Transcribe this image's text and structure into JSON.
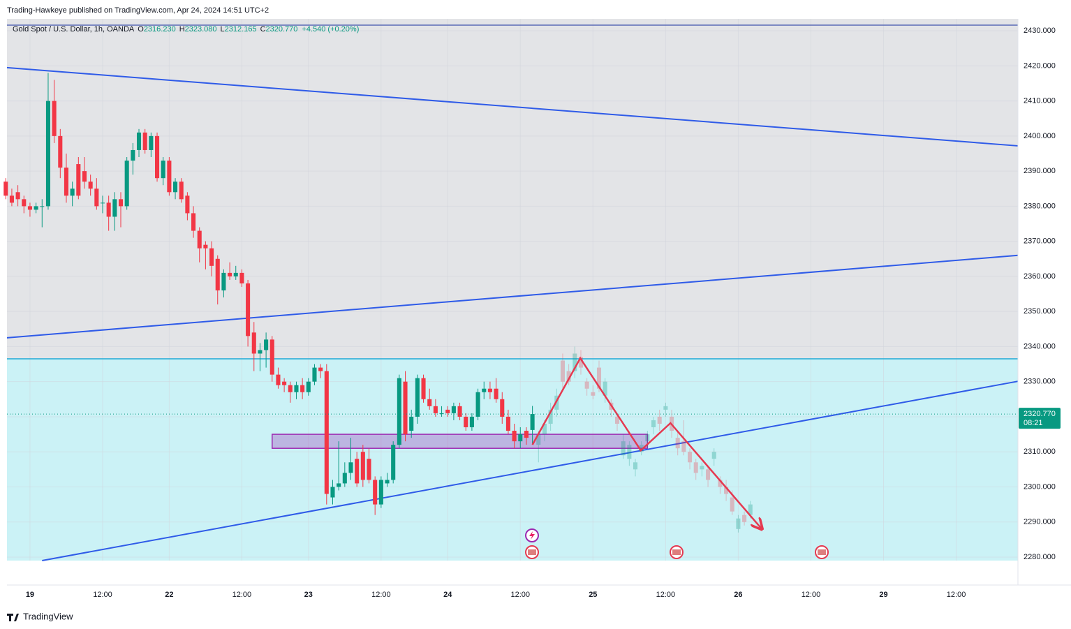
{
  "header": {
    "publisher": "Trading-Hawkeye published on TradingView.com, Apr 24, 2024 14:51 UTC+2",
    "logo": "TradingView"
  },
  "chart_data": {
    "type": "candlestick",
    "legend": {
      "symbol": "Gold Spot / U.S. Dollar, 1h, OANDA",
      "fields": [
        {
          "key": "O",
          "value": "2316.230"
        },
        {
          "key": "H",
          "value": "2323.080"
        },
        {
          "key": "L",
          "value": "2312.165"
        },
        {
          "key": "C",
          "value": "2320.770"
        }
      ],
      "change": "+4.540 (+0.20%)"
    },
    "up_color": "#089981",
    "down_color": "#f23645",
    "x": [
      -4,
      -3,
      -2,
      -1,
      0,
      1,
      2,
      3,
      4,
      5,
      6,
      7,
      8,
      9,
      10,
      11,
      12,
      13,
      14,
      15,
      16,
      17,
      18,
      19,
      20,
      21,
      22,
      23,
      24,
      25,
      26,
      27,
      28,
      29,
      30,
      31,
      32,
      33,
      34,
      35,
      36,
      37,
      38,
      39,
      40,
      41,
      42,
      43,
      44,
      45,
      46,
      47,
      48,
      49,
      50,
      51,
      52,
      53,
      54,
      55,
      56,
      57,
      58,
      59,
      60,
      61,
      62,
      63,
      64,
      65,
      66,
      67,
      68,
      69,
      70,
      71,
      72,
      73,
      74,
      75,
      76,
      77,
      78,
      79,
      80,
      81,
      82,
      83
    ],
    "ohlc": [
      [
        2387,
        2388,
        2382,
        2383
      ],
      [
        2383,
        2385,
        2380,
        2381
      ],
      [
        2384,
        2386,
        2380,
        2382
      ],
      [
        2382,
        2383,
        2378,
        2380
      ],
      [
        2380,
        2381,
        2377,
        2379
      ],
      [
        2379,
        2381,
        2378,
        2380
      ],
      [
        2380,
        2382,
        2374,
        2380
      ],
      [
        2380,
        2418,
        2379,
        2410
      ],
      [
        2410,
        2416,
        2398,
        2400
      ],
      [
        2400,
        2402,
        2388,
        2391
      ],
      [
        2391,
        2395,
        2381,
        2383
      ],
      [
        2383,
        2387,
        2380,
        2385
      ],
      [
        2392,
        2394,
        2382,
        2383
      ],
      [
        2390,
        2394,
        2385,
        2387
      ],
      [
        2387,
        2389,
        2383,
        2385
      ],
      [
        2385,
        2388,
        2379,
        2380
      ],
      [
        2381,
        2383,
        2378,
        2381
      ],
      [
        2381,
        2383,
        2373,
        2377
      ],
      [
        2377,
        2384,
        2373,
        2382
      ],
      [
        2382,
        2384,
        2374,
        2380
      ],
      [
        2380,
        2394,
        2379,
        2393
      ],
      [
        2393,
        2398,
        2389,
        2396
      ],
      [
        2396,
        2402,
        2394,
        2401
      ],
      [
        2401,
        2402,
        2395,
        2396
      ],
      [
        2396,
        2401,
        2394,
        2400
      ],
      [
        2400,
        2401,
        2387,
        2388
      ],
      [
        2388,
        2394,
        2386,
        2393
      ],
      [
        2393,
        2394,
        2383,
        2384
      ],
      [
        2384,
        2388,
        2382,
        2387
      ],
      [
        2387,
        2388,
        2381,
        2382
      ],
      [
        2383,
        2384,
        2376,
        2378
      ],
      [
        2378,
        2380,
        2371,
        2373
      ],
      [
        2373,
        2374,
        2364,
        2368
      ],
      [
        2369,
        2370,
        2362,
        2368
      ],
      [
        2368,
        2370,
        2360,
        2363
      ],
      [
        2365,
        2366,
        2352,
        2356
      ],
      [
        2356,
        2362,
        2354,
        2361
      ],
      [
        2361,
        2364,
        2359,
        2360
      ],
      [
        2360,
        2363,
        2359,
        2361
      ],
      [
        2361,
        2362,
        2357,
        2358
      ],
      [
        2358,
        2359,
        2340,
        2343
      ],
      [
        2344,
        2347,
        2333,
        2338
      ],
      [
        2338,
        2341,
        2333,
        2339
      ],
      [
        2339,
        2344,
        2334,
        2342
      ],
      [
        2342,
        2343,
        2330,
        2332
      ],
      [
        2332,
        2334,
        2328,
        2329
      ],
      [
        2330,
        2331,
        2327,
        2329
      ],
      [
        2329,
        2330,
        2324,
        2327
      ],
      [
        2327,
        2330,
        2325,
        2329
      ],
      [
        2329,
        2331,
        2325,
        2327
      ],
      [
        2327,
        2331,
        2326,
        2330
      ],
      [
        2330,
        2335,
        2329,
        2334
      ],
      [
        2334,
        2335,
        2331,
        2333
      ],
      [
        2333,
        2335,
        2295,
        2298
      ],
      [
        2297,
        2302,
        2295,
        2300
      ],
      [
        2300,
        2313,
        2299,
        2301
      ],
      [
        2301,
        2307,
        2300,
        2304
      ],
      [
        2304,
        2314,
        2302,
        2307
      ],
      [
        2308,
        2310,
        2300,
        2301
      ],
      [
        2310,
        2312,
        2300,
        2302
      ],
      [
        2308,
        2311,
        2301,
        2302
      ],
      [
        2302,
        2303,
        2292,
        2295
      ],
      [
        2295,
        2303,
        2294,
        2302
      ],
      [
        2301,
        2304,
        2300,
        2302
      ],
      [
        2302,
        2313,
        2301,
        2312
      ],
      [
        2312,
        2332,
        2311,
        2331
      ],
      [
        2330,
        2333,
        2313,
        2315
      ],
      [
        2316,
        2322,
        2314,
        2320
      ],
      [
        2320,
        2332,
        2318,
        2331
      ],
      [
        2331,
        2332,
        2324,
        2325
      ],
      [
        2325,
        2328,
        2322,
        2323
      ],
      [
        2323,
        2325,
        2320,
        2321
      ],
      [
        2321,
        2323,
        2320,
        2321
      ],
      [
        2322,
        2323,
        2320,
        2321
      ],
      [
        2321,
        2324,
        2319,
        2323
      ],
      [
        2323,
        2324,
        2319,
        2320
      ],
      [
        2320,
        2321,
        2316,
        2317
      ],
      [
        2317,
        2321,
        2316,
        2320
      ],
      [
        2320,
        2328,
        2319,
        2327
      ],
      [
        2327,
        2330,
        2325,
        2328
      ],
      [
        2328,
        2330,
        2325,
        2327
      ],
      [
        2328,
        2331,
        2324,
        2325
      ],
      [
        2325,
        2327,
        2318,
        2320
      ],
      [
        2320,
        2322,
        2315,
        2316
      ],
      [
        2316,
        2318,
        2311,
        2313
      ],
      [
        2313,
        2317,
        2311,
        2315
      ],
      [
        2316,
        2317,
        2312,
        2314
      ],
      [
        2316.23,
        2323.08,
        2312.165,
        2320.77
      ]
    ],
    "projection_x": [
      84,
      85,
      86,
      87,
      88,
      89,
      90,
      91,
      92,
      93,
      94,
      95,
      96,
      97,
      98,
      99,
      100,
      101,
      102,
      103,
      104,
      105,
      106,
      107,
      108,
      109,
      110,
      111,
      112,
      113,
      114,
      115,
      116,
      117,
      118,
      119
    ],
    "projection_ohlc": [
      [
        2312,
        2316,
        2307,
        2315
      ],
      [
        2315,
        2319,
        2313,
        2318
      ],
      [
        2318,
        2324,
        2316,
        2322
      ],
      [
        2322,
        2328,
        2320,
        2326
      ],
      [
        2336,
        2338,
        2328,
        2330
      ],
      [
        2333,
        2335,
        2329,
        2330
      ],
      [
        2333,
        2340,
        2331,
        2338
      ],
      [
        2337,
        2339,
        2332,
        2334
      ],
      [
        2330,
        2331,
        2326,
        2328
      ],
      [
        2327,
        2329,
        2325,
        2326
      ],
      [
        2334,
        2336,
        2327,
        2328
      ],
      [
        2326,
        2331,
        2324,
        2330
      ],
      [
        2324,
        2325,
        2320,
        2322
      ],
      [
        2320,
        2321,
        2316,
        2318
      ],
      [
        2309,
        2315,
        2308,
        2313
      ],
      [
        2308,
        2313,
        2306,
        2312
      ],
      [
        2305,
        2308,
        2303,
        2307
      ],
      [
        2310,
        2313,
        2309,
        2312
      ],
      [
        2313,
        2316,
        2311,
        2315
      ],
      [
        2317,
        2320,
        2315,
        2319
      ],
      [
        2320,
        2322,
        2316,
        2318
      ],
      [
        2322,
        2324,
        2320,
        2323
      ],
      [
        2320,
        2322,
        2314,
        2316
      ],
      [
        2314,
        2316,
        2309,
        2311
      ],
      [
        2313,
        2319,
        2309,
        2310
      ],
      [
        2310,
        2311,
        2305,
        2307
      ],
      [
        2307,
        2308,
        2302,
        2304
      ],
      [
        2305,
        2307,
        2303,
        2306
      ],
      [
        2305,
        2306,
        2300,
        2302
      ],
      [
        2308,
        2311,
        2306,
        2310
      ],
      [
        2302,
        2303,
        2298,
        2300
      ],
      [
        2300,
        2302,
        2296,
        2298
      ],
      [
        2297,
        2299,
        2292,
        2293
      ],
      [
        2288,
        2292,
        2287,
        2291
      ],
      [
        2292,
        2293,
        2289,
        2290
      ],
      [
        2292,
        2296,
        2291,
        2295
      ]
    ],
    "xlim": [
      -3.8,
      163.2
    ],
    "ylim": [
      2279,
      2433.4
    ],
    "yticks": [
      {
        "value": 2280,
        "label": "2280.000"
      },
      {
        "value": 2290,
        "label": "2290.000"
      },
      {
        "value": 2300,
        "label": "2300.000"
      },
      {
        "value": 2310,
        "label": "2310.000"
      },
      {
        "value": 2320,
        "label": "2320.000"
      },
      {
        "value": 2330,
        "label": "2330.000"
      },
      {
        "value": 2340,
        "label": "2340.000"
      },
      {
        "value": 2350,
        "label": "2350.000"
      },
      {
        "value": 2360,
        "label": "2360.000"
      },
      {
        "value": 2370,
        "label": "2370.000"
      },
      {
        "value": 2380,
        "label": "2380.000"
      },
      {
        "value": 2390,
        "label": "2390.000"
      },
      {
        "value": 2400,
        "label": "2400.000"
      },
      {
        "value": 2410,
        "label": "2410.000"
      },
      {
        "value": 2420,
        "label": "2420.000"
      },
      {
        "value": 2430,
        "label": "2430.000"
      }
    ],
    "xticks": [
      {
        "value": 0,
        "label": "19"
      },
      {
        "value": 12,
        "label": "12:00"
      },
      {
        "value": 23,
        "label": "22"
      },
      {
        "value": 35,
        "label": "12:00"
      },
      {
        "value": 46,
        "label": "23"
      },
      {
        "value": 58,
        "label": "12:00"
      },
      {
        "value": 69,
        "label": "24"
      },
      {
        "value": 81,
        "label": "12:00"
      },
      {
        "value": 93,
        "label": "25"
      },
      {
        "value": 105,
        "label": "12:00"
      },
      {
        "value": 117,
        "label": "26"
      },
      {
        "value": 129,
        "label": "12:00"
      },
      {
        "value": 141,
        "label": "29"
      },
      {
        "value": 153,
        "label": "12:00"
      }
    ],
    "grid": true,
    "last_price": {
      "value": 2320.77,
      "label": "2320.770"
    },
    "countdown": "08:21",
    "zone": {
      "top": 2336.5,
      "color": "#cbf2f6"
    },
    "top_line": 2431.6,
    "trendlines": [
      {
        "x": [
          -3.8,
          163.2
        ],
        "y": [
          2419.5,
          2397.2
        ],
        "color": "#2f5be8"
      },
      {
        "x": [
          -3.8,
          163.2
        ],
        "y": [
          2342.5,
          2366
        ],
        "color": "#2f5be8"
      },
      {
        "x": [
          2,
          163.2
        ],
        "y": [
          2279,
          2330.1
        ],
        "color": "#2f5be8"
      }
    ],
    "box": {
      "x": [
        40,
        102
      ],
      "y": [
        2311,
        2315
      ],
      "color": "#9c27b0"
    },
    "zigzag": {
      "x": [
        83,
        90.9,
        100.9,
        105.8,
        120.8
      ],
      "y": [
        2312,
        2336.7,
        2310.4,
        2318.2,
        2288.2
      ],
      "color": "#e53950"
    }
  }
}
